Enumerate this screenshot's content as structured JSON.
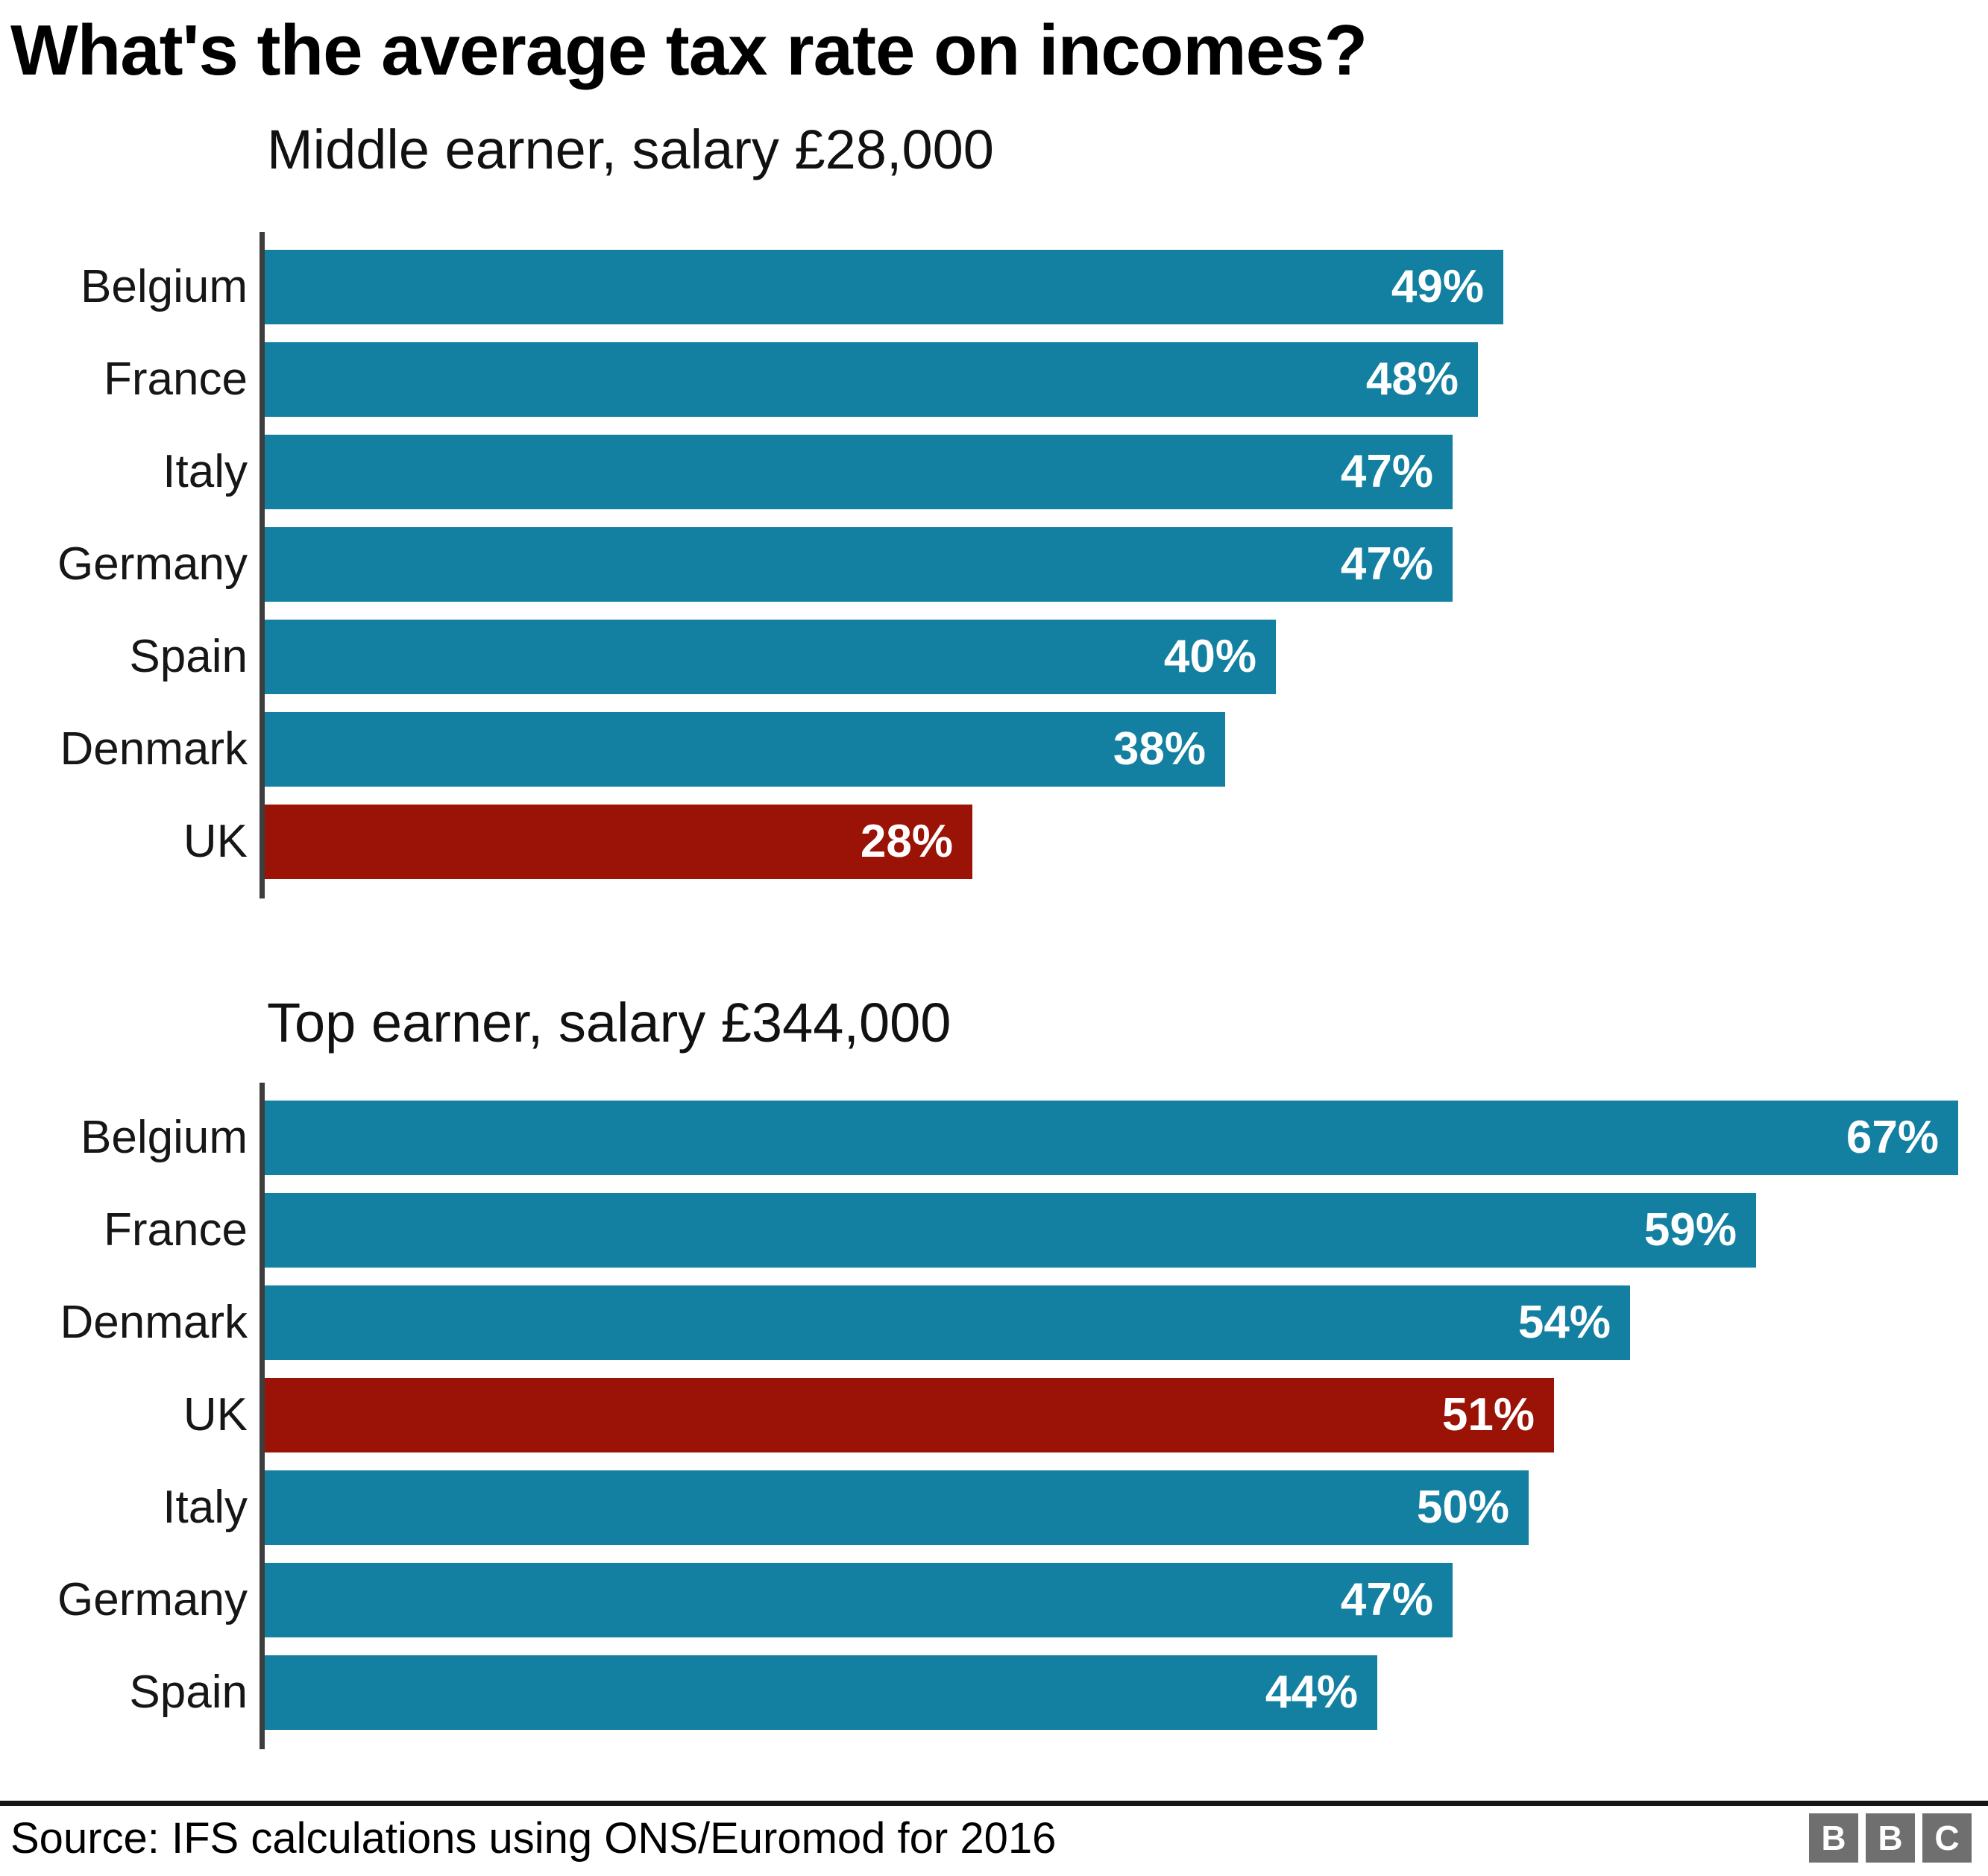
{
  "title": "What's the average tax rate on incomes?",
  "chart_data": [
    {
      "type": "bar",
      "orientation": "horizontal",
      "title": "Middle earner, salary £28,000",
      "categories": [
        "Belgium",
        "France",
        "Italy",
        "Germany",
        "Spain",
        "Denmark",
        "UK"
      ],
      "values": [
        49,
        48,
        47,
        47,
        40,
        38,
        28
      ],
      "labels": [
        "49%",
        "48%",
        "47%",
        "47%",
        "40%",
        "38%",
        "28%"
      ],
      "unit": "%",
      "highlight_category": "UK",
      "xlim": [
        0,
        68
      ],
      "grid": false,
      "legend": false,
      "value_labels_inside_bar": true
    },
    {
      "type": "bar",
      "orientation": "horizontal",
      "title": "Top earner, salary £344,000",
      "categories": [
        "Belgium",
        "France",
        "Denmark",
        "UK",
        "Italy",
        "Germany",
        "Spain"
      ],
      "values": [
        67,
        59,
        54,
        51,
        50,
        47,
        44
      ],
      "labels": [
        "67%",
        "59%",
        "54%",
        "51%",
        "50%",
        "47%",
        "44%"
      ],
      "unit": "%",
      "highlight_category": "UK",
      "xlim": [
        0,
        68
      ],
      "grid": false,
      "legend": false,
      "value_labels_inside_bar": true
    }
  ],
  "footer": {
    "source": "Source: IFS calculations using ONS/Euromod for 2016",
    "logo": [
      "B",
      "B",
      "C"
    ]
  },
  "colors": {
    "bar": "#1380a1",
    "highlight_bar": "#9a1306",
    "axis": "#3d3d3d",
    "title_text": "#000000",
    "label_text": "#161616",
    "value_text": "#ffffff",
    "footer_rule": "#161616",
    "logo_square": "#6f6f6f"
  }
}
